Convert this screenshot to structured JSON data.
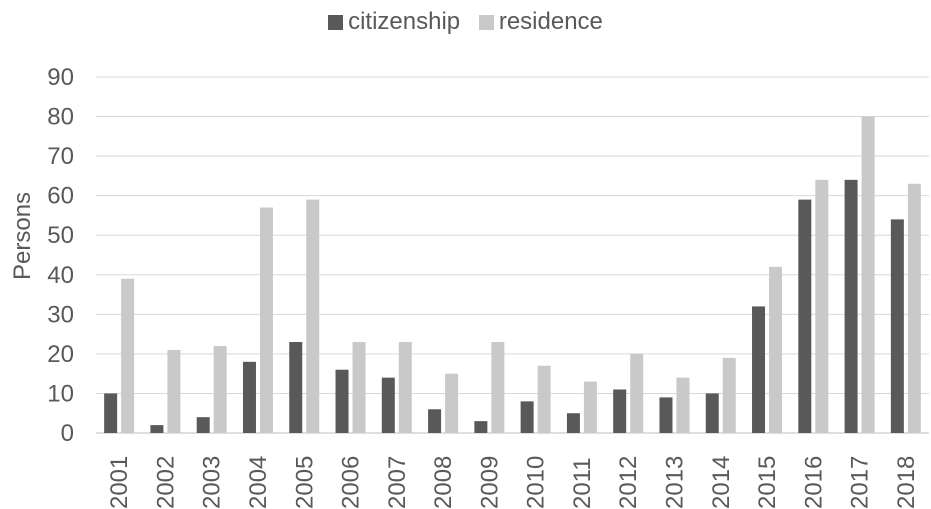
{
  "chart_data": {
    "type": "bar",
    "categories": [
      "2001",
      "2002",
      "2003",
      "2004",
      "2005",
      "2006",
      "2007",
      "2008",
      "2009",
      "2010",
      "2011",
      "2012",
      "2013",
      "2014",
      "2015",
      "2016",
      "2017",
      "2018"
    ],
    "series": [
      {
        "name": "citizenship",
        "color": "#595959",
        "values": [
          10,
          2,
          4,
          18,
          23,
          16,
          14,
          6,
          3,
          8,
          5,
          11,
          9,
          10,
          32,
          59,
          64,
          54
        ]
      },
      {
        "name": "residence",
        "color": "#c9c9c9",
        "values": [
          39,
          21,
          22,
          57,
          59,
          23,
          23,
          15,
          23,
          17,
          13,
          20,
          14,
          19,
          42,
          64,
          80,
          63
        ]
      }
    ],
    "ylabel": "Persons",
    "xlabel": "",
    "ylim": [
      0,
      90
    ],
    "yticks": [
      0,
      10,
      20,
      30,
      40,
      50,
      60,
      70,
      80,
      90
    ],
    "grid": true,
    "legend_position": "top-center"
  }
}
